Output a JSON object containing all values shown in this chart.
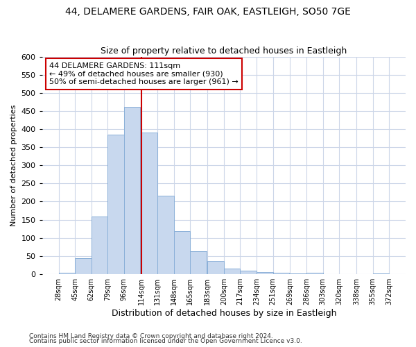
{
  "title1": "44, DELAMERE GARDENS, FAIR OAK, EASTLEIGH, SO50 7GE",
  "title2": "Size of property relative to detached houses in Eastleigh",
  "xlabel": "Distribution of detached houses by size in Eastleigh",
  "ylabel": "Number of detached properties",
  "bar_color": "#c8d8ee",
  "bar_edge_color": "#8aafd8",
  "grid_color": "#ccd6e8",
  "background_color": "#ffffff",
  "vline_x": 114,
  "vline_color": "#cc0000",
  "bins_left": [
    28,
    45,
    62,
    79,
    96,
    114,
    131,
    148,
    165,
    183,
    200,
    217,
    234,
    251,
    269,
    286,
    303,
    320,
    338,
    355
  ],
  "bin_width": 17,
  "bar_heights": [
    4,
    44,
    158,
    385,
    461,
    390,
    217,
    118,
    63,
    35,
    15,
    9,
    5,
    3,
    2,
    4,
    0,
    0,
    0,
    2
  ],
  "ylim": [
    0,
    600
  ],
  "yticks": [
    0,
    50,
    100,
    150,
    200,
    250,
    300,
    350,
    400,
    450,
    500,
    550,
    600
  ],
  "xtick_labels": [
    "28sqm",
    "45sqm",
    "62sqm",
    "79sqm",
    "96sqm",
    "114sqm",
    "131sqm",
    "148sqm",
    "165sqm",
    "183sqm",
    "200sqm",
    "217sqm",
    "234sqm",
    "251sqm",
    "269sqm",
    "286sqm",
    "303sqm",
    "320sqm",
    "338sqm",
    "355sqm",
    "372sqm"
  ],
  "annotation_text": "44 DELAMERE GARDENS: 111sqm\n← 49% of detached houses are smaller (930)\n50% of semi-detached houses are larger (961) →",
  "footnote1": "Contains HM Land Registry data © Crown copyright and database right 2024.",
  "footnote2": "Contains public sector information licensed under the Open Government Licence v3.0.",
  "title1_fontsize": 10,
  "title2_fontsize": 9,
  "xlabel_fontsize": 9,
  "ylabel_fontsize": 8,
  "xtick_fontsize": 7,
  "ytick_fontsize": 8,
  "annotation_fontsize": 8,
  "footnote_fontsize": 6.5
}
